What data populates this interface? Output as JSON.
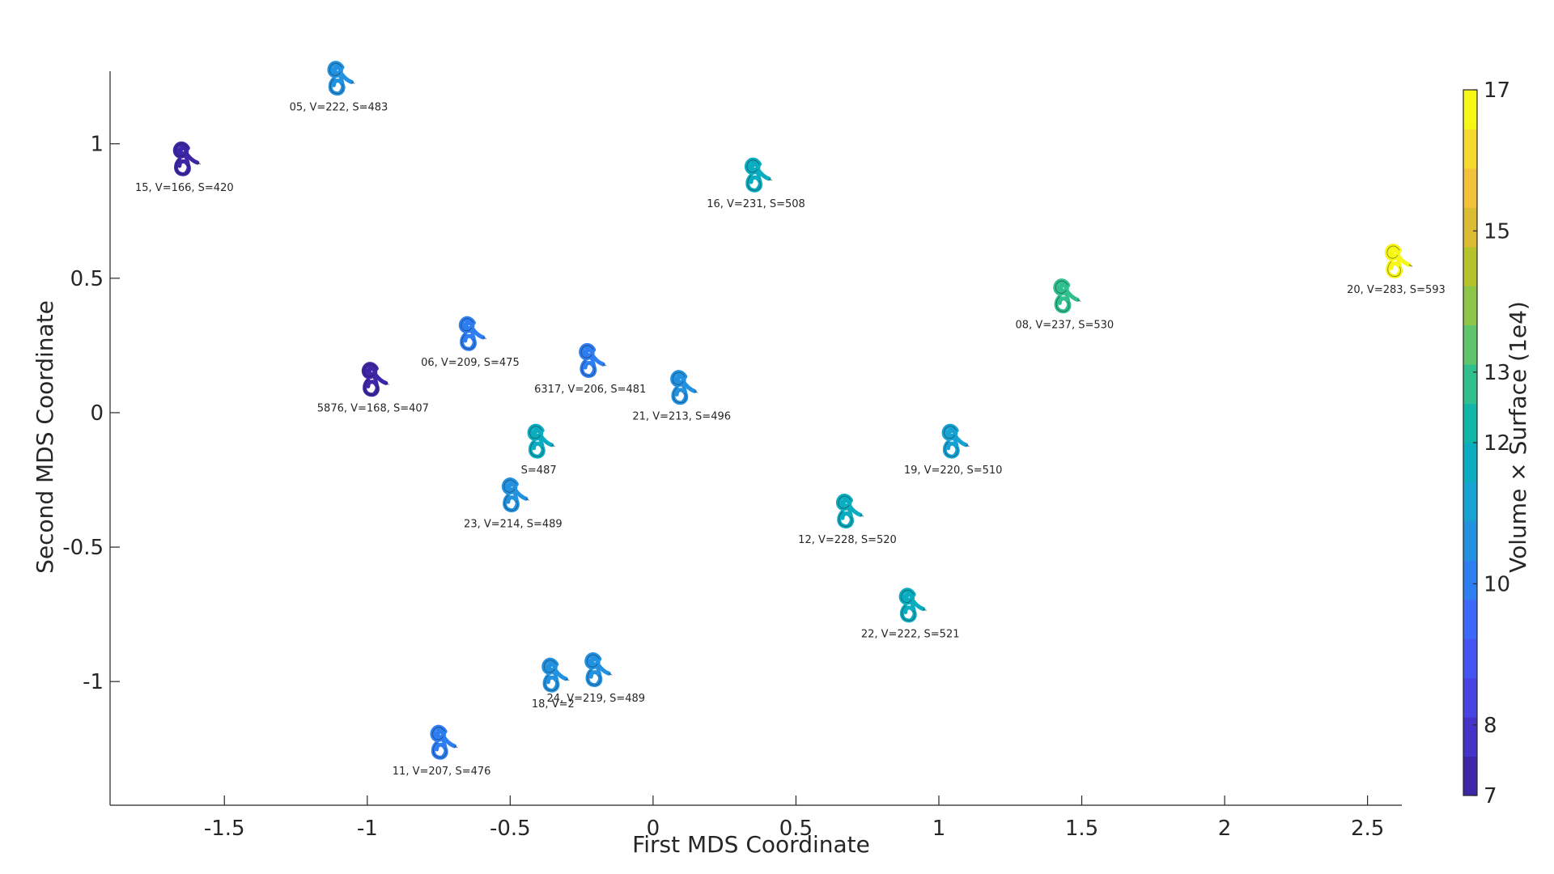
{
  "chart_data": {
    "type": "scatter",
    "title": "",
    "xlabel": "First MDS Coordinate",
    "ylabel": "Second MDS Coordinate",
    "xlim": [
      -1.9,
      2.62
    ],
    "ylim": [
      -1.46,
      1.27
    ],
    "xticks": [
      -1.5,
      -1,
      -0.5,
      0,
      0.5,
      1,
      1.5,
      2,
      2.5
    ],
    "xtick_labels": [
      "-1.5",
      "-1",
      "-0.5",
      "0",
      "0.5",
      "1",
      "1.5",
      "2",
      "2.5"
    ],
    "yticks": [
      1,
      0.5,
      0,
      -0.5,
      -1
    ],
    "ytick_labels": [
      "1",
      "0.5",
      "0",
      "-0.5",
      "-1"
    ],
    "grid": false,
    "marker": "cochlea-shape-icon",
    "points": [
      {
        "id": "05",
        "x": -1.1,
        "y": 1.26,
        "color_value": 10.72,
        "label": "05, V=222, S=483"
      },
      {
        "id": "15",
        "x": -1.64,
        "y": 0.96,
        "color_value": 6.97,
        "label": "15, V=166, S=420"
      },
      {
        "id": "16",
        "x": 0.36,
        "y": 0.9,
        "color_value": 11.73,
        "label": "16, V=231, S=508"
      },
      {
        "id": "20",
        "x": 2.6,
        "y": 0.58,
        "color_value": 16.78,
        "label": "20, V=283, S=593"
      },
      {
        "id": "08",
        "x": 1.44,
        "y": 0.45,
        "color_value": 12.56,
        "label": "08, V=237, S=530"
      },
      {
        "id": "06",
        "x": -0.64,
        "y": 0.31,
        "color_value": 9.93,
        "label": "06, V=209, S=475"
      },
      {
        "id": "6317",
        "x": -0.22,
        "y": 0.21,
        "color_value": 9.91,
        "label": "6317, V=206, S=481"
      },
      {
        "id": "5876",
        "x": -0.98,
        "y": 0.14,
        "color_value": 6.84,
        "label": "5876, V=168, S=407"
      },
      {
        "id": "21",
        "x": 0.1,
        "y": 0.11,
        "color_value": 10.56,
        "label": "21, V=213, S=496"
      },
      {
        "id": "19",
        "x": 1.05,
        "y": -0.09,
        "color_value": 11.22,
        "label": "19, V=220, S=510"
      },
      {
        "id": "12",
        "x": 0.68,
        "y": -0.35,
        "color_value": 11.86,
        "label": "12, V=228, S=520"
      },
      {
        "id": "23",
        "x": -0.49,
        "y": -0.29,
        "color_value": 10.46,
        "label": "23, V=214, S=489"
      },
      {
        "id": "22",
        "x": 0.9,
        "y": -0.7,
        "color_value": 11.57,
        "label": "22, V=222, S=521"
      },
      {
        "id": "18",
        "x": -0.35,
        "y": -0.96,
        "color_value": 10.6,
        "label": "18, V=2"
      },
      {
        "id": "24",
        "x": -0.2,
        "y": -0.94,
        "color_value": 10.71,
        "label": "24, V=219, S=489"
      },
      {
        "id": "11",
        "x": -0.74,
        "y": -1.21,
        "color_value": 9.85,
        "label": "11, V=207, S=476"
      },
      {
        "id": "partial-1",
        "x": -0.4,
        "y": -0.09,
        "color_value": 11.9,
        "label": "S=487"
      }
    ],
    "colorbar": {
      "label": "Volume × Surface (1e4)",
      "range": [
        7,
        17
      ],
      "ticks": [
        7,
        8,
        10,
        12,
        13,
        15,
        17
      ],
      "tick_labels": [
        "7",
        "8",
        "10",
        "12",
        "13",
        "15",
        "17"
      ],
      "levels": 18,
      "colormap": "parula",
      "colors": [
        "#3e26a8",
        "#4433c9",
        "#4743e5",
        "#4555f4",
        "#3d68fc",
        "#2d7ef3",
        "#2292e0",
        "#16a2d2",
        "#0aadc0",
        "#10b7a8",
        "#2fc08d",
        "#5ec56c",
        "#8ec648",
        "#b7c32b",
        "#dcbd31",
        "#f4c13a",
        "#fad92e",
        "#f6f715"
      ]
    }
  }
}
